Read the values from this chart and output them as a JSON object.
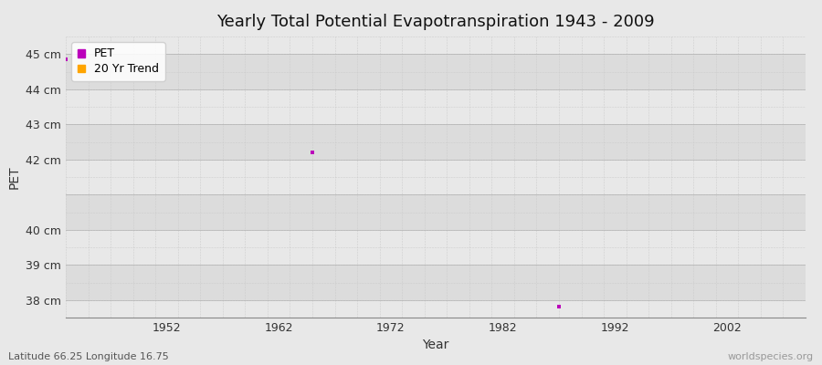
{
  "title": "Yearly Total Potential Evapotranspiration 1943 - 2009",
  "xlabel": "Year",
  "ylabel": "PET",
  "xlim": [
    1943,
    2009
  ],
  "ylim": [
    37.5,
    45.5
  ],
  "ytick_values": [
    38,
    39,
    40,
    41,
    42,
    43,
    44,
    45
  ],
  "ytick_labels": [
    "38 cm",
    "39 cm",
    "40 cm",
    "",
    "42 cm",
    "43 cm",
    "44 cm",
    "45 cm"
  ],
  "xtick_values": [
    1952,
    1962,
    1972,
    1982,
    1992,
    2002
  ],
  "pet_data_x": [
    1943,
    1965,
    1987
  ],
  "pet_data_y": [
    44.85,
    42.2,
    37.82
  ],
  "pet_color": "#bb00bb",
  "trend_color": "#ffa500",
  "background_color": "#e8e8e8",
  "band_colors": [
    "#dcdcdc",
    "#e8e8e8"
  ],
  "grid_color": "#c8c8c8",
  "legend_labels": [
    "PET",
    "20 Yr Trend"
  ],
  "footer_left": "Latitude 66.25 Longitude 16.75",
  "footer_right": "worldspecies.org",
  "title_fontsize": 13,
  "axis_label_fontsize": 10,
  "tick_fontsize": 9,
  "footer_fontsize": 8
}
